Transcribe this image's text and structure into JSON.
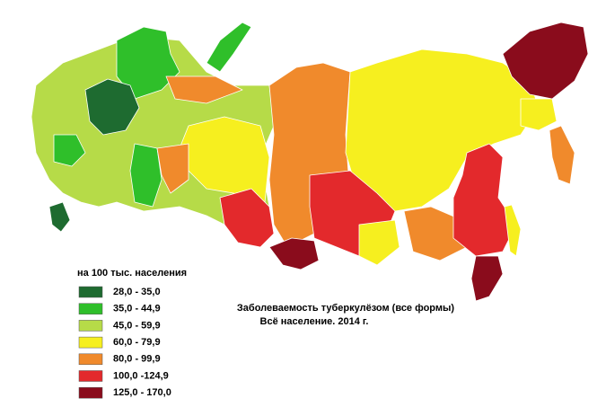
{
  "legend": {
    "title": "на 100 тыс. населения",
    "items": [
      {
        "label": "28,0 - 35,0",
        "color": "#1e6b30"
      },
      {
        "label": "35,0 - 44,9",
        "color": "#2fbf2a"
      },
      {
        "label": "45,0 - 59,9",
        "color": "#b6db48"
      },
      {
        "label": "60,0 - 79,9",
        "color": "#f6ef1f"
      },
      {
        "label": "80,0 - 99,9",
        "color": "#f08a2c"
      },
      {
        "label": "100,0 -124,9",
        "color": "#e3292c"
      },
      {
        "label": "125,0 - 170,0",
        "color": "#8a0c1c"
      }
    ]
  },
  "caption": {
    "line1": "Заболеваемость туберкулёзом (все формы)",
    "line2": "Всё население. 2014 г."
  }
}
